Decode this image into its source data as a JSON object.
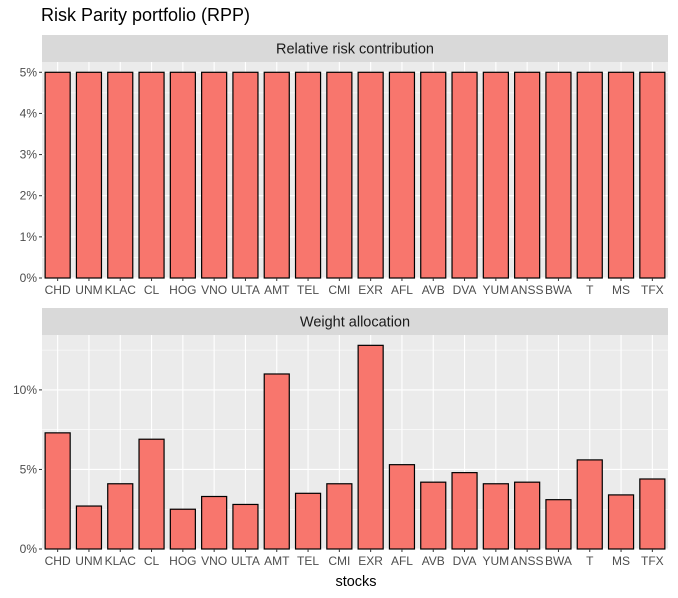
{
  "chart_data": {
    "type": "bar",
    "title": "Risk Parity portfolio (RPP)",
    "xlabel": "stocks",
    "categories": [
      "CHD",
      "UNM",
      "KLAC",
      "CL",
      "HOG",
      "VNO",
      "ULTA",
      "AMT",
      "TEL",
      "CMI",
      "EXR",
      "AFL",
      "AVB",
      "DVA",
      "YUM",
      "ANSS",
      "BWA",
      "T",
      "MS",
      "TFX"
    ],
    "panels": [
      {
        "name": "Relative risk contribution",
        "values": [
          0.05,
          0.05,
          0.05,
          0.05,
          0.05,
          0.05,
          0.05,
          0.05,
          0.05,
          0.05,
          0.05,
          0.05,
          0.05,
          0.05,
          0.05,
          0.05,
          0.05,
          0.05,
          0.05,
          0.05
        ],
        "ylim": [
          0,
          0.0525
        ],
        "yticks": [
          0,
          0.01,
          0.02,
          0.03,
          0.04,
          0.05
        ],
        "ytick_labels": [
          "0%",
          "1%",
          "2%",
          "3%",
          "4%",
          "5%"
        ]
      },
      {
        "name": "Weight allocation",
        "values": [
          0.073,
          0.027,
          0.041,
          0.069,
          0.025,
          0.033,
          0.028,
          0.11,
          0.035,
          0.041,
          0.128,
          0.053,
          0.042,
          0.048,
          0.041,
          0.042,
          0.031,
          0.056,
          0.034,
          0.044
        ],
        "ylim": [
          0,
          0.1345
        ],
        "yticks": [
          0,
          0.05,
          0.1
        ],
        "ytick_labels": [
          "0%",
          "5%",
          "10%"
        ]
      }
    ],
    "bar_fill": "#F8766D",
    "bar_stroke": "#000000",
    "panel_background": "#EBEBEB",
    "strip_background": "#D9D9D9",
    "grid": true,
    "legend": "none"
  }
}
